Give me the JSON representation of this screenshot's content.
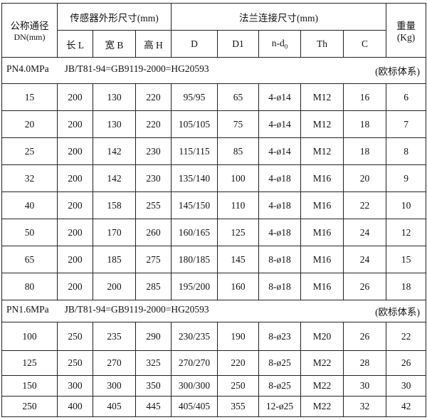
{
  "header": {
    "dn_label": "公称通径",
    "dn_unit": "DN(mm)",
    "sensor_group": "传感器外形尺寸(mm)",
    "flange_group": "法兰连接尺寸(mm)",
    "weight_label": "重量",
    "weight_unit": "(Kg)",
    "cols": [
      "长 L",
      "宽 B",
      "高 H",
      "D",
      "D1",
      "n-d",
      "Th",
      "C"
    ],
    "nd_sub": "0"
  },
  "sections": [
    {
      "pressure": "PN4.0MPa",
      "standard": "JB/T81-94=GB9119-2000=HG20593",
      "system": "(欧标体系)",
      "rows": [
        [
          "15",
          "200",
          "130",
          "220",
          "95/95",
          "65",
          "4-ø14",
          "M12",
          "16",
          "6"
        ],
        [
          "20",
          "200",
          "130",
          "220",
          "105/105",
          "75",
          "4-ø14",
          "M12",
          "18",
          "7"
        ],
        [
          "25",
          "200",
          "142",
          "230",
          "115/115",
          "85",
          "4-ø14",
          "M12",
          "18",
          "8"
        ],
        [
          "32",
          "200",
          "142",
          "230",
          "135/140",
          "100",
          "4-ø18",
          "M16",
          "20",
          "9"
        ],
        [
          "40",
          "200",
          "158",
          "255",
          "145/150",
          "110",
          "4-ø18",
          "M16",
          "22",
          "10"
        ],
        [
          "50",
          "200",
          "170",
          "260",
          "160/165",
          "125",
          "4-ø18",
          "M16",
          "24",
          "12"
        ],
        [
          "65",
          "200",
          "185",
          "275",
          "180/185",
          "145",
          "8-ø18",
          "M16",
          "24",
          "15"
        ],
        [
          "80",
          "200",
          "200",
          "285",
          "195/200",
          "160",
          "8-ø18",
          "M16",
          "26",
          "18"
        ]
      ]
    },
    {
      "pressure": "PN1.6MPa",
      "standard": "JB/T81-94=GB9119-2000=HG20593",
      "system": "(欧标体系)",
      "rows": [
        [
          "100",
          "250",
          "235",
          "290",
          "230/235",
          "190",
          "8-ø23",
          "M20",
          "26",
          "22"
        ],
        [
          "125",
          "250",
          "270",
          "325",
          "270/270",
          "220",
          "8-ø25",
          "M22",
          "28",
          "26"
        ],
        [
          "150",
          "300",
          "300",
          "350",
          "300/300",
          "250",
          "8-ø25",
          "M22",
          "30",
          "30"
        ],
        [
          "250",
          "400",
          "405",
          "445",
          "405/405",
          "355",
          "12-ø25",
          "M22",
          "32",
          "42"
        ]
      ]
    }
  ]
}
